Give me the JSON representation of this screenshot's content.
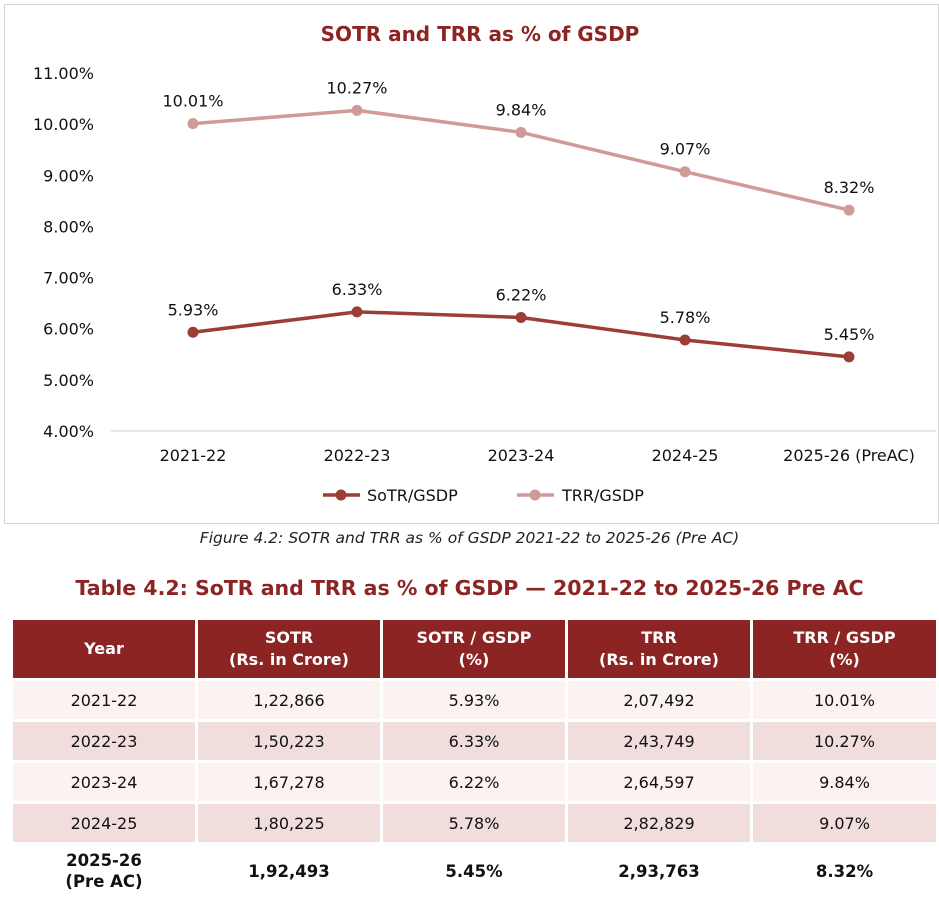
{
  "chart_data": {
    "type": "line",
    "title": "SOTR and TRR as % of GSDP",
    "categories": [
      "2021-22",
      "2022-23",
      "2023-24",
      "2024-25",
      "2025-26 (PreAC)"
    ],
    "y_ticks": [
      "4.00%",
      "5.00%",
      "6.00%",
      "7.00%",
      "8.00%",
      "9.00%",
      "10.00%",
      "11.00%"
    ],
    "ylim": [
      4,
      11
    ],
    "grid": false,
    "legend_position": "bottom",
    "series": [
      {
        "name": "SoTR/GSDP",
        "values": [
          5.93,
          6.33,
          6.22,
          5.78,
          5.45
        ],
        "labels": [
          "5.93%",
          "6.33%",
          "6.22%",
          "5.78%",
          "5.45%"
        ],
        "color": "#9c3d36"
      },
      {
        "name": "TRR/GSDP",
        "values": [
          10.01,
          10.27,
          9.84,
          9.07,
          8.32
        ],
        "labels": [
          "10.01%",
          "10.27%",
          "9.84%",
          "9.07%",
          "8.32%"
        ],
        "color": "#cf9a98"
      }
    ]
  },
  "caption": "Figure 4.2: SOTR and TRR as % of GSDP 2021-22 to 2025-26 (Pre AC)",
  "table": {
    "title": "Table 4.2: SoTR and TRR as % of GSDP — 2021-22 to 2025-26 Pre AC",
    "headers": [
      [
        "Year"
      ],
      [
        "SOTR",
        "(Rs. in Crore)"
      ],
      [
        "SOTR / GSDP",
        "(%)"
      ],
      [
        "TRR",
        "(Rs. in Crore)"
      ],
      [
        "TRR / GSDP",
        "(%)"
      ]
    ],
    "rows": [
      [
        "2021-22",
        "1,22,866",
        "5.93%",
        "2,07,492",
        "10.01%"
      ],
      [
        "2022-23",
        "1,50,223",
        "6.33%",
        "2,43,749",
        "10.27%"
      ],
      [
        "2023-24",
        "1,67,278",
        "6.22%",
        "2,64,597",
        "9.84%"
      ],
      [
        "2024-25",
        "1,80,225",
        "5.78%",
        "2,82,829",
        "9.07%"
      ]
    ],
    "last_row": [
      [
        "2025-26",
        "(Pre AC)"
      ],
      [
        "1,92,493"
      ],
      [
        "5.45%"
      ],
      [
        "2,93,763"
      ],
      [
        "8.32%"
      ]
    ]
  }
}
